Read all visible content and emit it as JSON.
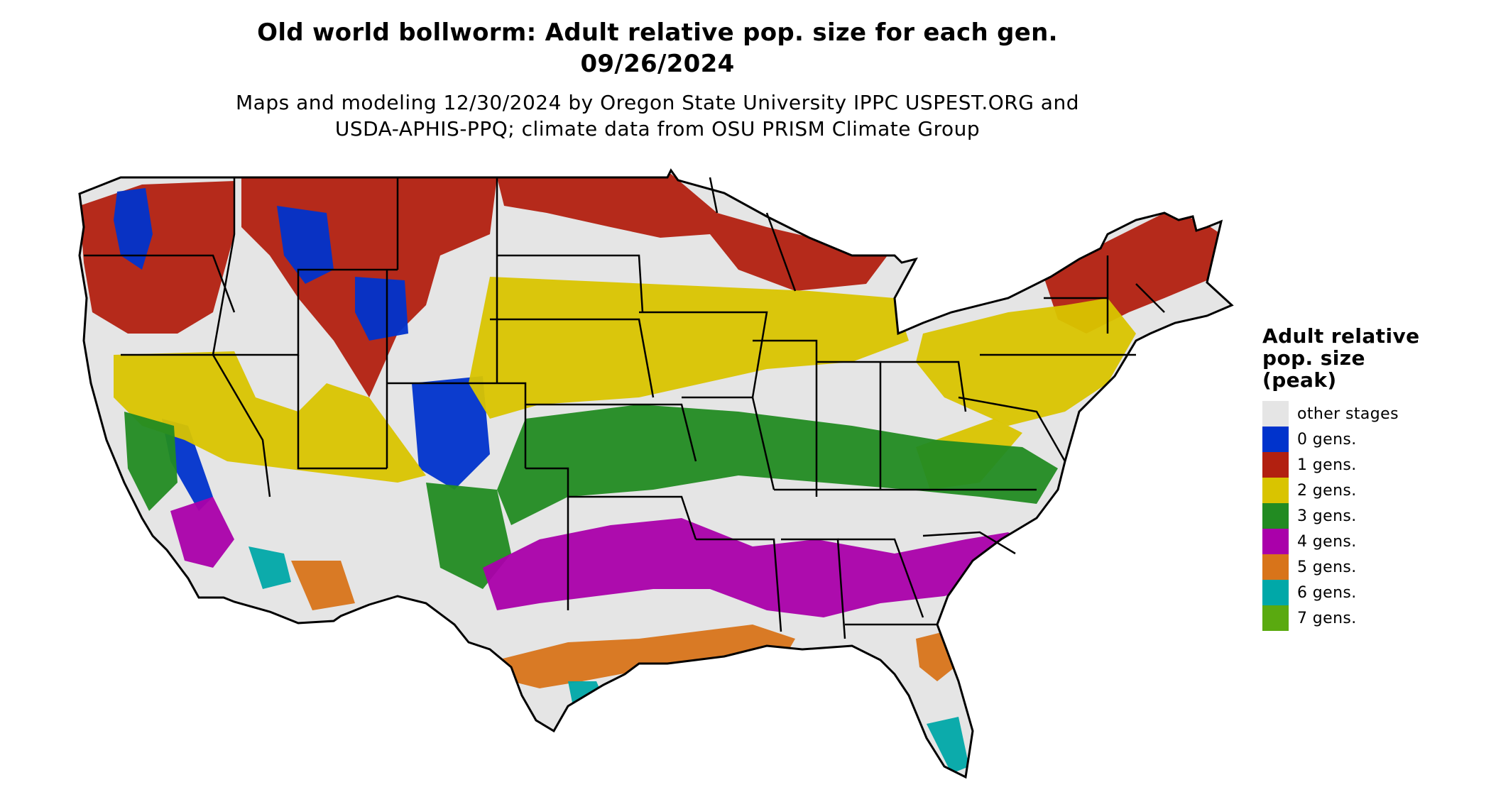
{
  "title_line1": "Old world bollworm: Adult relative pop. size for each gen.",
  "title_line2": "09/26/2024",
  "subtitle_line1": "Maps and modeling 12/30/2024 by Oregon State University IPPC USPEST.ORG and",
  "subtitle_line2": "USDA-APHIS-PPQ; climate data from OSU PRISM Climate Group",
  "legend": {
    "title_lines": [
      "Adult relative",
      "pop. size",
      "(peak)"
    ],
    "items": [
      {
        "label": "other stages",
        "color": "#e5e5e5"
      },
      {
        "label": "0 gens.",
        "color": "#0033cc"
      },
      {
        "label": "1 gens.",
        "color": "#b22010"
      },
      {
        "label": "2 gens.",
        "color": "#d9c400"
      },
      {
        "label": "3 gens.",
        "color": "#228b22"
      },
      {
        "label": "4 gens.",
        "color": "#aa00aa"
      },
      {
        "label": "5 gens.",
        "color": "#d8741a"
      },
      {
        "label": "6 gens.",
        "color": "#00a8a8"
      },
      {
        "label": "7 gens.",
        "color": "#5aaa10"
      }
    ]
  }
}
